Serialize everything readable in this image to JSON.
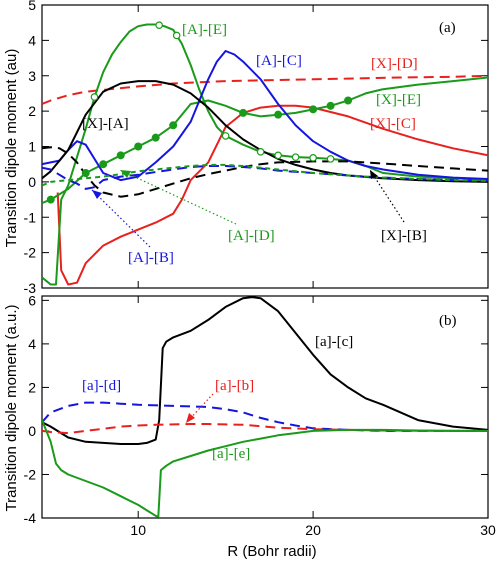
{
  "chart_data": [
    {
      "panel": "(a)",
      "type": "line",
      "ylabel": "Transition dipole moment (au)",
      "xlim": [
        4.5,
        30
      ],
      "ylim": [
        -3,
        5
      ],
      "xticks": [
        10,
        20,
        30
      ],
      "yticks": [
        -3,
        -2,
        -1,
        0,
        1,
        2,
        3,
        4,
        5
      ],
      "grid": false,
      "series": [
        {
          "name": "[X]-[D]",
          "color": "#e8211f",
          "dash": "10,6",
          "marker": "none",
          "x": [
            4.5,
            5,
            6,
            7,
            8,
            10,
            12,
            15,
            18,
            20,
            22,
            25,
            28,
            30
          ],
          "y": [
            2.2,
            2.3,
            2.45,
            2.55,
            2.6,
            2.7,
            2.78,
            2.85,
            2.88,
            2.9,
            2.92,
            2.95,
            2.97,
            3.0
          ]
        },
        {
          "name": "[X]-[C]",
          "color": "#e8211f",
          "dash": "",
          "marker": "none",
          "x": [
            5.4,
            5.6,
            6,
            6.5,
            7,
            8,
            9,
            10,
            11,
            12,
            12.5,
            13,
            13.5,
            14,
            15,
            16,
            17,
            18,
            19,
            20,
            22,
            24,
            26,
            28,
            30
          ],
          "y": [
            -0.3,
            -2.5,
            -2.9,
            -2.85,
            -2.3,
            -1.8,
            -1.55,
            -1.35,
            -1.15,
            -0.9,
            -0.5,
            0.05,
            0.3,
            0.55,
            1.55,
            1.95,
            2.1,
            2.15,
            2.15,
            2.1,
            1.85,
            1.5,
            1.2,
            0.95,
            0.75
          ]
        },
        {
          "name": "[A]-[E]",
          "color": "#1a9a1a",
          "dash": "",
          "marker": "open-circle",
          "x": [
            4.5,
            5,
            5.3,
            5.6,
            6,
            6.5,
            7,
            7.5,
            8,
            8.5,
            9,
            9.5,
            10,
            10.5,
            11,
            11.5,
            12,
            12.5,
            13,
            13.5,
            14,
            14.5,
            15,
            16,
            17,
            18,
            19,
            20,
            21,
            22,
            23,
            24,
            26,
            28,
            30
          ],
          "y": [
            -2.7,
            -2.9,
            -2.9,
            -0.5,
            -0.1,
            0.7,
            1.5,
            2.4,
            3.1,
            3.6,
            3.95,
            4.25,
            4.4,
            4.45,
            4.45,
            4.4,
            4.3,
            3.9,
            3.3,
            2.6,
            2.0,
            1.55,
            1.3,
            1.05,
            0.85,
            0.75,
            0.7,
            0.68,
            0.65,
            0.6,
            0.45,
            0.25,
            0.15,
            0.1,
            0.05
          ],
          "marker_x": [
            7.5,
            11.2,
            12.2,
            15,
            17,
            18,
            19,
            20,
            21
          ]
        },
        {
          "name": "[X]-[E]",
          "color": "#1a9a1a",
          "dash": "",
          "marker": "filled-circle",
          "x": [
            4.5,
            5,
            6,
            7,
            8,
            9,
            10,
            11,
            12,
            13,
            14,
            15,
            16,
            17,
            18,
            19,
            20,
            21,
            22,
            23,
            24,
            26,
            28,
            30
          ],
          "y": [
            -0.6,
            -0.5,
            -0.2,
            0.25,
            0.5,
            0.75,
            1.0,
            1.25,
            1.6,
            2.2,
            2.3,
            2.15,
            1.95,
            1.85,
            1.9,
            1.95,
            2.05,
            2.15,
            2.3,
            2.5,
            2.62,
            2.75,
            2.85,
            2.95
          ],
          "marker_x": [
            5,
            7,
            8,
            9,
            10,
            11,
            12,
            16,
            18,
            20,
            21,
            22
          ]
        },
        {
          "name": "[A]-[C]",
          "color": "#1515e0",
          "dash": "",
          "marker": "none",
          "x": [
            4.5,
            5,
            5.5,
            6,
            6.5,
            7,
            7.5,
            8,
            9,
            10,
            10.5,
            11,
            12,
            13,
            13.5,
            14,
            14.5,
            15,
            15.5,
            16,
            17,
            18,
            19,
            20,
            21,
            22,
            23,
            24,
            26,
            28,
            30
          ],
          "y": [
            0.5,
            0.55,
            0.6,
            0.9,
            1.15,
            1.05,
            0.65,
            0.25,
            0.05,
            0.15,
            0.35,
            0.55,
            1.0,
            1.7,
            2.3,
            2.9,
            3.4,
            3.7,
            3.6,
            3.4,
            2.9,
            2.2,
            1.6,
            1.15,
            0.85,
            0.6,
            0.45,
            0.35,
            0.2,
            0.12,
            0.08
          ]
        },
        {
          "name": "[X]-[A]",
          "color": "#000000",
          "dash": "",
          "marker": "none",
          "x": [
            4.5,
            5,
            6,
            7,
            8,
            9,
            10,
            11,
            12,
            13,
            14,
            15,
            16,
            17,
            18,
            19,
            20,
            21,
            22,
            24,
            26,
            28,
            30
          ],
          "y": [
            0.1,
            0.3,
            0.9,
            1.9,
            2.55,
            2.78,
            2.85,
            2.85,
            2.75,
            2.5,
            2.1,
            1.6,
            1.2,
            0.9,
            0.65,
            0.48,
            0.35,
            0.25,
            0.18,
            0.1,
            0.05,
            0.02,
            0.0
          ]
        },
        {
          "name": "[X]-[B]",
          "color": "#000000",
          "dash": "10,6",
          "marker": "none",
          "x": [
            4.5,
            5,
            5.5,
            6,
            6.5,
            7,
            7.5,
            8,
            9,
            10,
            11,
            12,
            13,
            14,
            15,
            16,
            17,
            18,
            20,
            22,
            24,
            26,
            28,
            30
          ],
          "y": [
            0.95,
            0.98,
            0.95,
            0.8,
            0.55,
            0.2,
            -0.1,
            -0.3,
            -0.42,
            -0.35,
            -0.2,
            -0.05,
            0.1,
            0.22,
            0.32,
            0.42,
            0.5,
            0.55,
            0.58,
            0.58,
            0.52,
            0.45,
            0.38,
            0.32
          ]
        },
        {
          "name": "[A]-[B]",
          "color": "#1515e0",
          "dash": "10,6",
          "marker": "none",
          "x": [
            4.5,
            5,
            5.5,
            6,
            6.5,
            7,
            7.5,
            8,
            9,
            10,
            11,
            12,
            13,
            14,
            15,
            16,
            17,
            18,
            20,
            22,
            24,
            26,
            28,
            30
          ],
          "y": [
            0.4,
            0.35,
            0.2,
            0.05,
            -0.05,
            -0.2,
            -0.15,
            0.05,
            0.15,
            0.2,
            0.28,
            0.35,
            0.42,
            0.45,
            0.45,
            0.42,
            0.38,
            0.32,
            0.25,
            0.18,
            0.12,
            0.08,
            0.05,
            0.03
          ]
        },
        {
          "name": "[A]-[D]",
          "color": "#1a9a1a",
          "dash": "5,4",
          "marker": "none",
          "x": [
            4.5,
            5,
            6,
            7,
            8,
            9,
            10,
            11,
            12,
            13,
            14,
            15,
            16,
            17,
            18,
            20,
            22,
            24,
            26,
            28,
            30
          ],
          "y": [
            -0.1,
            0.0,
            0.05,
            0.1,
            0.15,
            0.22,
            0.3,
            0.35,
            0.4,
            0.45,
            0.48,
            0.48,
            0.45,
            0.4,
            0.35,
            0.25,
            0.18,
            0.12,
            0.08,
            0.05,
            0.03
          ]
        }
      ],
      "annotations": [
        {
          "text": "(a)",
          "color": "#000000"
        },
        {
          "text": "[A]-[E]",
          "color": "#1a9a1a"
        },
        {
          "text": "[A]-[C]",
          "color": "#1515e0"
        },
        {
          "text": "[X]-[D]",
          "color": "#e8211f"
        },
        {
          "text": "[X]-[E]",
          "color": "#1a9a1a"
        },
        {
          "text": "[X]-[C]",
          "color": "#e8211f"
        },
        {
          "text": "[X]-[A]",
          "color": "#000000"
        },
        {
          "text": "[A]-[D]",
          "color": "#1a9a1a"
        },
        {
          "text": "[X]-[B]",
          "color": "#000000"
        },
        {
          "text": "[A]-[B]",
          "color": "#1515e0"
        }
      ]
    },
    {
      "panel": "(b)",
      "type": "line",
      "ylabel": "Transition dipole moment (a.u.)",
      "xlabel": "R (Bohr radii)",
      "xlim": [
        4.5,
        30
      ],
      "ylim": [
        -4,
        6.2
      ],
      "xticks": [
        10,
        20,
        30
      ],
      "yticks": [
        -4,
        -2,
        0,
        2,
        4,
        6
      ],
      "grid": false,
      "series": [
        {
          "name": "[a]-[c]",
          "color": "#000000",
          "dash": "",
          "marker": "none",
          "x": [
            4.5,
            5,
            6,
            7,
            8,
            9,
            10,
            10.5,
            11,
            11.2,
            11.4,
            11.6,
            12,
            13,
            14,
            15,
            16,
            16.5,
            17,
            18,
            19,
            20,
            21,
            22,
            23,
            24,
            26,
            28,
            30
          ],
          "y": [
            0.4,
            0.2,
            -0.3,
            -0.5,
            -0.55,
            -0.6,
            -0.6,
            -0.55,
            -0.4,
            0.5,
            3.8,
            4.1,
            4.3,
            4.6,
            5.1,
            5.7,
            6.1,
            6.15,
            6.1,
            5.5,
            4.5,
            3.5,
            2.6,
            2.0,
            1.5,
            1.2,
            0.5,
            0.2,
            0.05
          ]
        },
        {
          "name": "[a]-[d]",
          "color": "#1515e0",
          "dash": "10,6",
          "marker": "none",
          "x": [
            4.5,
            5,
            6,
            7,
            8,
            9,
            10,
            12,
            14,
            15,
            16,
            17,
            18,
            19,
            20,
            22,
            24,
            26,
            28,
            30
          ],
          "y": [
            0.4,
            0.85,
            1.15,
            1.3,
            1.3,
            1.25,
            1.2,
            1.15,
            1.1,
            1.0,
            0.85,
            0.6,
            0.4,
            0.25,
            0.12,
            0.05,
            0.0,
            0.0,
            0.0,
            0.0
          ]
        },
        {
          "name": "[a]-[b]",
          "color": "#e8211f",
          "dash": "10,6",
          "marker": "none",
          "x": [
            4.5,
            5,
            6,
            7,
            8,
            9,
            10,
            11,
            12,
            13,
            14,
            15,
            16,
            17,
            18,
            20,
            22,
            24,
            26,
            28,
            30
          ],
          "y": [
            0.0,
            -0.05,
            -0.1,
            0.0,
            0.1,
            0.2,
            0.25,
            0.28,
            0.3,
            0.32,
            0.32,
            0.3,
            0.28,
            0.22,
            0.15,
            0.08,
            0.05,
            0.02,
            0.01,
            0.0,
            0.0
          ]
        },
        {
          "name": "[a]-[e]",
          "color": "#1a9a1a",
          "dash": "",
          "marker": "none",
          "x": [
            4.5,
            5,
            5.3,
            5.6,
            6,
            7,
            8,
            9,
            10,
            10.5,
            11,
            11.15,
            11.3,
            11.6,
            12,
            13,
            14,
            15,
            16,
            17,
            18,
            19,
            20,
            22,
            24,
            26,
            28,
            30
          ],
          "y": [
            0.5,
            -0.5,
            -1.5,
            -1.8,
            -2.0,
            -2.3,
            -2.6,
            -3.0,
            -3.4,
            -3.65,
            -3.9,
            -3.95,
            -1.8,
            -1.6,
            -1.4,
            -1.15,
            -0.9,
            -0.7,
            -0.5,
            -0.35,
            -0.2,
            -0.1,
            0.0,
            0.05,
            0.05,
            0.02,
            0.0,
            0.0
          ]
        }
      ],
      "annotations": [
        {
          "text": "(b)",
          "color": "#000000"
        },
        {
          "text": "[a]-[c]",
          "color": "#000000"
        },
        {
          "text": "[a]-[d]",
          "color": "#1515e0"
        },
        {
          "text": "[a]-[b]",
          "color": "#e8211f"
        },
        {
          "text": "[a]-[e]",
          "color": "#1a9a1a"
        }
      ]
    }
  ]
}
